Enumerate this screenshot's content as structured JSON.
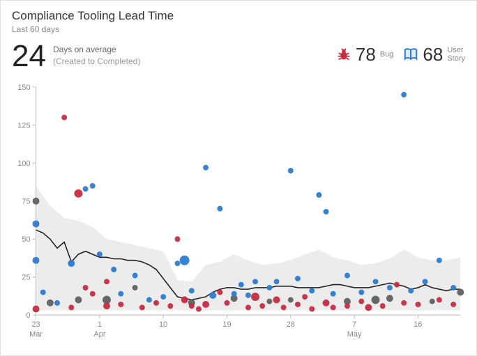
{
  "title": "Compliance Tooling Lead Time",
  "subtitle": "Last 60 days",
  "metric": {
    "value": "24",
    "line1": "Days on average",
    "line2": "(Created to Completed)"
  },
  "legend": {
    "bug": {
      "count": "78",
      "label": "Bug",
      "color": "#c72c41"
    },
    "story": {
      "count": "68",
      "label1": "User",
      "label2": "Story",
      "color": "#2b7cd3"
    },
    "rolling": {
      "color": "#606060"
    }
  },
  "chart": {
    "type": "scatter-with-trend-band",
    "background": "#ffffff",
    "band_color": "#ececec",
    "trend_color": "#222222",
    "trend_width": 1.6,
    "axis_color": "#bbbbbb",
    "text_color": "#888888",
    "font_size": 11,
    "x": {
      "min": 0,
      "max": 60,
      "ticks": [
        0,
        9,
        18,
        27,
        36,
        45,
        54
      ],
      "tick_labels": [
        "23",
        "1",
        "10",
        "19",
        "28",
        "7",
        "16"
      ],
      "month_marks": [
        {
          "x": 0,
          "label": "Mar"
        },
        {
          "x": 9,
          "label": "Apr"
        },
        {
          "x": 45,
          "label": "May"
        }
      ]
    },
    "y": {
      "min": 0,
      "max": 150,
      "ticks": [
        0,
        25,
        50,
        75,
        100,
        125,
        150
      ]
    },
    "band_upper": [
      [
        0,
        85
      ],
      [
        2,
        72
      ],
      [
        4,
        64
      ],
      [
        6,
        62
      ],
      [
        8,
        58
      ],
      [
        10,
        50
      ],
      [
        12,
        48
      ],
      [
        14,
        46
      ],
      [
        16,
        44
      ],
      [
        18,
        42
      ],
      [
        20,
        23
      ],
      [
        22,
        22
      ],
      [
        24,
        33
      ],
      [
        26,
        35
      ],
      [
        28,
        40
      ],
      [
        30,
        36
      ],
      [
        32,
        33
      ],
      [
        34,
        34
      ],
      [
        36,
        36
      ],
      [
        38,
        40
      ],
      [
        40,
        43
      ],
      [
        42,
        38
      ],
      [
        44,
        36
      ],
      [
        46,
        33
      ],
      [
        48,
        34
      ],
      [
        50,
        37
      ],
      [
        52,
        43
      ],
      [
        54,
        38
      ],
      [
        56,
        36
      ],
      [
        58,
        36
      ],
      [
        60,
        38
      ]
    ],
    "band_lower": [
      [
        0,
        3
      ],
      [
        2,
        3
      ],
      [
        4,
        3
      ],
      [
        6,
        3
      ],
      [
        8,
        3
      ],
      [
        10,
        3
      ],
      [
        12,
        3
      ],
      [
        14,
        3
      ],
      [
        16,
        3
      ],
      [
        18,
        3
      ],
      [
        20,
        3
      ],
      [
        22,
        3
      ],
      [
        24,
        3
      ],
      [
        26,
        3
      ],
      [
        28,
        3
      ],
      [
        30,
        3
      ],
      [
        32,
        3
      ],
      [
        34,
        3
      ],
      [
        36,
        3
      ],
      [
        38,
        3
      ],
      [
        40,
        3
      ],
      [
        42,
        3
      ],
      [
        44,
        3
      ],
      [
        46,
        3
      ],
      [
        48,
        3
      ],
      [
        50,
        3
      ],
      [
        52,
        3
      ],
      [
        54,
        3
      ],
      [
        56,
        3
      ],
      [
        58,
        3
      ],
      [
        60,
        3
      ]
    ],
    "trend": [
      [
        0,
        56
      ],
      [
        1,
        54
      ],
      [
        2,
        50
      ],
      [
        3,
        44
      ],
      [
        4,
        48
      ],
      [
        5,
        35
      ],
      [
        6,
        40
      ],
      [
        7,
        42
      ],
      [
        8,
        40
      ],
      [
        9,
        38
      ],
      [
        10,
        38
      ],
      [
        11,
        37
      ],
      [
        12,
        37
      ],
      [
        13,
        36
      ],
      [
        14,
        36
      ],
      [
        15,
        35
      ],
      [
        16,
        33
      ],
      [
        17,
        30
      ],
      [
        18,
        24
      ],
      [
        19,
        18
      ],
      [
        20,
        12
      ],
      [
        21,
        11
      ],
      [
        22,
        10
      ],
      [
        23,
        11
      ],
      [
        24,
        12
      ],
      [
        25,
        15
      ],
      [
        26,
        17
      ],
      [
        27,
        18
      ],
      [
        28,
        18
      ],
      [
        29,
        17
      ],
      [
        30,
        17
      ],
      [
        31,
        18
      ],
      [
        32,
        18
      ],
      [
        33,
        18
      ],
      [
        34,
        19
      ],
      [
        35,
        19
      ],
      [
        36,
        19
      ],
      [
        37,
        18
      ],
      [
        38,
        18
      ],
      [
        39,
        18
      ],
      [
        40,
        18
      ],
      [
        41,
        19
      ],
      [
        42,
        20
      ],
      [
        43,
        20
      ],
      [
        44,
        19
      ],
      [
        45,
        18
      ],
      [
        46,
        18
      ],
      [
        47,
        18
      ],
      [
        48,
        19
      ],
      [
        49,
        20
      ],
      [
        50,
        21
      ],
      [
        51,
        20
      ],
      [
        52,
        19
      ],
      [
        53,
        17
      ],
      [
        54,
        18
      ],
      [
        55,
        20
      ],
      [
        56,
        18
      ],
      [
        57,
        17
      ],
      [
        58,
        16
      ],
      [
        59,
        17
      ],
      [
        60,
        17
      ]
    ],
    "series": {
      "bug": {
        "color": "#c72c41",
        "points": [
          {
            "x": 0,
            "y": 4,
            "r": 5
          },
          {
            "x": 4,
            "y": 130,
            "r": 4
          },
          {
            "x": 5,
            "y": 5,
            "r": 4
          },
          {
            "x": 6,
            "y": 80,
            "r": 6
          },
          {
            "x": 7,
            "y": 18,
            "r": 4
          },
          {
            "x": 8,
            "y": 14,
            "r": 4
          },
          {
            "x": 10,
            "y": 22,
            "r": 4
          },
          {
            "x": 10,
            "y": 6,
            "r": 5
          },
          {
            "x": 12,
            "y": 7,
            "r": 4
          },
          {
            "x": 15,
            "y": 5,
            "r": 4
          },
          {
            "x": 17,
            "y": 8,
            "r": 4
          },
          {
            "x": 19,
            "y": 6,
            "r": 4
          },
          {
            "x": 20,
            "y": 50,
            "r": 4
          },
          {
            "x": 21,
            "y": 10,
            "r": 5
          },
          {
            "x": 22,
            "y": 6,
            "r": 4
          },
          {
            "x": 23,
            "y": 4,
            "r": 4
          },
          {
            "x": 24,
            "y": 7,
            "r": 5
          },
          {
            "x": 26,
            "y": 15,
            "r": 4
          },
          {
            "x": 27,
            "y": 8,
            "r": 4
          },
          {
            "x": 30,
            "y": 5,
            "r": 4
          },
          {
            "x": 31,
            "y": 12,
            "r": 6
          },
          {
            "x": 32,
            "y": 6,
            "r": 4
          },
          {
            "x": 34,
            "y": 10,
            "r": 5
          },
          {
            "x": 35,
            "y": 5,
            "r": 4
          },
          {
            "x": 37,
            "y": 7,
            "r": 4
          },
          {
            "x": 38,
            "y": 12,
            "r": 4
          },
          {
            "x": 39,
            "y": 4,
            "r": 4
          },
          {
            "x": 41,
            "y": 8,
            "r": 5
          },
          {
            "x": 42,
            "y": 5,
            "r": 4
          },
          {
            "x": 44,
            "y": 6,
            "r": 4
          },
          {
            "x": 46,
            "y": 9,
            "r": 4
          },
          {
            "x": 47,
            "y": 5,
            "r": 5
          },
          {
            "x": 49,
            "y": 6,
            "r": 4
          },
          {
            "x": 51,
            "y": 20,
            "r": 4
          },
          {
            "x": 52,
            "y": 8,
            "r": 4
          },
          {
            "x": 54,
            "y": 7,
            "r": 4
          },
          {
            "x": 57,
            "y": 10,
            "r": 4
          },
          {
            "x": 59,
            "y": 7,
            "r": 4
          }
        ]
      },
      "story": {
        "color": "#2b7cd3",
        "points": [
          {
            "x": 0,
            "y": 60,
            "r": 5
          },
          {
            "x": 0,
            "y": 36,
            "r": 5
          },
          {
            "x": 1,
            "y": 15,
            "r": 4
          },
          {
            "x": 3,
            "y": 8,
            "r": 4
          },
          {
            "x": 5,
            "y": 34,
            "r": 5
          },
          {
            "x": 7,
            "y": 83,
            "r": 4
          },
          {
            "x": 8,
            "y": 85,
            "r": 4
          },
          {
            "x": 9,
            "y": 40,
            "r": 4
          },
          {
            "x": 11,
            "y": 30,
            "r": 4
          },
          {
            "x": 12,
            "y": 14,
            "r": 4
          },
          {
            "x": 14,
            "y": 26,
            "r": 4
          },
          {
            "x": 16,
            "y": 10,
            "r": 4
          },
          {
            "x": 18,
            "y": 12,
            "r": 4
          },
          {
            "x": 20,
            "y": 34,
            "r": 4
          },
          {
            "x": 21,
            "y": 36,
            "r": 7
          },
          {
            "x": 22,
            "y": 16,
            "r": 4
          },
          {
            "x": 24,
            "y": 97,
            "r": 4
          },
          {
            "x": 25,
            "y": 13,
            "r": 5
          },
          {
            "x": 26,
            "y": 70,
            "r": 4
          },
          {
            "x": 28,
            "y": 14,
            "r": 4
          },
          {
            "x": 29,
            "y": 20,
            "r": 4
          },
          {
            "x": 30,
            "y": 13,
            "r": 4
          },
          {
            "x": 31,
            "y": 22,
            "r": 4
          },
          {
            "x": 33,
            "y": 18,
            "r": 4
          },
          {
            "x": 34,
            "y": 22,
            "r": 4
          },
          {
            "x": 36,
            "y": 95,
            "r": 4
          },
          {
            "x": 37,
            "y": 24,
            "r": 4
          },
          {
            "x": 39,
            "y": 16,
            "r": 4
          },
          {
            "x": 40,
            "y": 79,
            "r": 4
          },
          {
            "x": 41,
            "y": 68,
            "r": 4
          },
          {
            "x": 42,
            "y": 14,
            "r": 4
          },
          {
            "x": 44,
            "y": 26,
            "r": 4
          },
          {
            "x": 46,
            "y": 15,
            "r": 4
          },
          {
            "x": 48,
            "y": 22,
            "r": 4
          },
          {
            "x": 50,
            "y": 18,
            "r": 4
          },
          {
            "x": 52,
            "y": 145,
            "r": 4
          },
          {
            "x": 53,
            "y": 16,
            "r": 4
          },
          {
            "x": 55,
            "y": 22,
            "r": 4
          },
          {
            "x": 57,
            "y": 36,
            "r": 4
          },
          {
            "x": 59,
            "y": 18,
            "r": 4
          }
        ]
      },
      "rolling": {
        "color": "#606060",
        "points": [
          {
            "x": 0,
            "y": 75,
            "r": 5
          },
          {
            "x": 2,
            "y": 8,
            "r": 5
          },
          {
            "x": 6,
            "y": 10,
            "r": 5
          },
          {
            "x": 10,
            "y": 10,
            "r": 6
          },
          {
            "x": 14,
            "y": 18,
            "r": 4
          },
          {
            "x": 22,
            "y": 8,
            "r": 5
          },
          {
            "x": 28,
            "y": 11,
            "r": 5
          },
          {
            "x": 33,
            "y": 9,
            "r": 4
          },
          {
            "x": 36,
            "y": 10,
            "r": 4
          },
          {
            "x": 44,
            "y": 9,
            "r": 5
          },
          {
            "x": 48,
            "y": 10,
            "r": 6
          },
          {
            "x": 50,
            "y": 11,
            "r": 5
          },
          {
            "x": 56,
            "y": 9,
            "r": 4
          },
          {
            "x": 60,
            "y": 15,
            "r": 5
          }
        ]
      }
    }
  }
}
